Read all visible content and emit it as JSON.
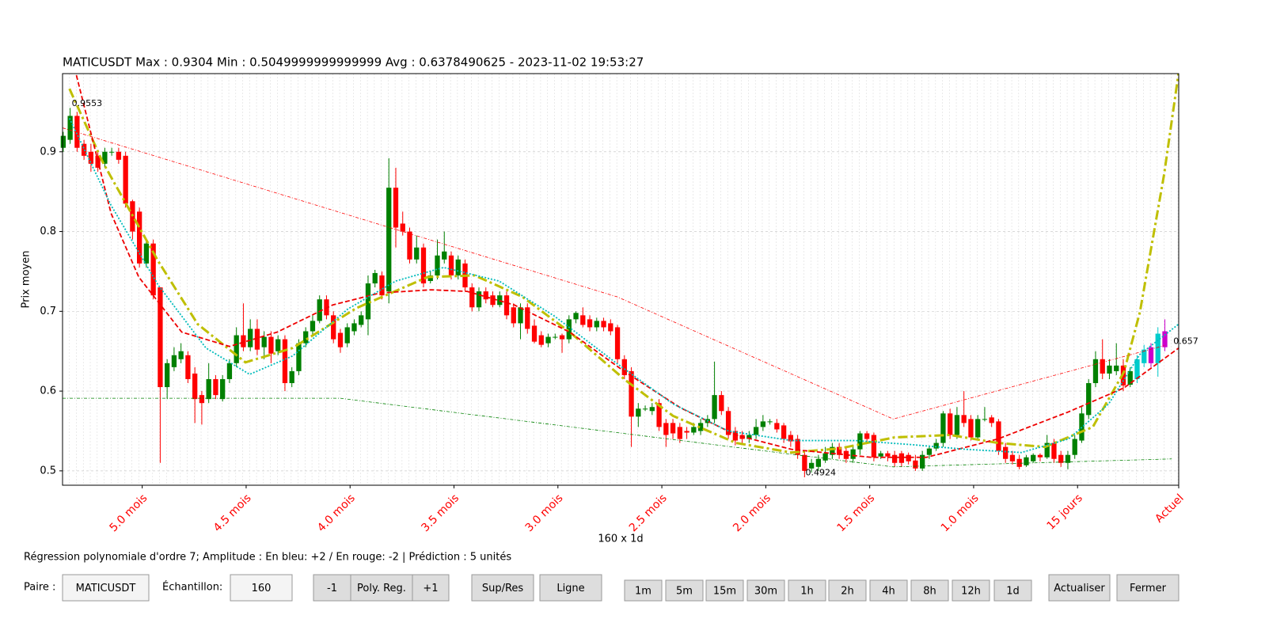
{
  "chart_data": {
    "type": "candlestick",
    "title": "MATICUSDT Max : 0.9304 Min : 0.5049999999999999 Avg : 0.6378490625 - 2023-11-02 19:53:27",
    "ylabel": "Prix moyen",
    "xlabel": "160 x 1d",
    "xlim": [
      -0.1,
      161
    ],
    "ylim": [
      0.482,
      0.998
    ],
    "yticks": [
      0.5,
      0.6,
      0.7,
      0.8,
      0.9
    ],
    "grid": true,
    "xticks": [
      {
        "value": 11.4,
        "label": "5.0 mois"
      },
      {
        "value": 26.4,
        "label": "4.5 mois"
      },
      {
        "value": 41.4,
        "label": "4.0 mois"
      },
      {
        "value": 56.4,
        "label": "3.5 mois"
      },
      {
        "value": 71.4,
        "label": "3.0 mois"
      },
      {
        "value": 86.4,
        "label": "2.5 mois"
      },
      {
        "value": 101.4,
        "label": "2.0 mois"
      },
      {
        "value": 116.4,
        "label": "1.5 mois"
      },
      {
        "value": 131.4,
        "label": "1.0 mois"
      },
      {
        "value": 146.4,
        "label": "15 jours"
      },
      {
        "value": 161,
        "label": "Actuel"
      }
    ],
    "up_color": "#008000",
    "down_color": "#ff0000",
    "pred_up_color": "#00cccc",
    "pred_down_color": "#cc00cc",
    "candles": [
      [
        0.905,
        0.925,
        0.9,
        0.92
      ],
      [
        0.915,
        0.955,
        0.91,
        0.945
      ],
      [
        0.945,
        0.95,
        0.9,
        0.905
      ],
      [
        0.91,
        0.915,
        0.89,
        0.895
      ],
      [
        0.9,
        0.91,
        0.875,
        0.885
      ],
      [
        0.895,
        0.9,
        0.875,
        0.88
      ],
      [
        0.885,
        0.905,
        0.88,
        0.9
      ],
      [
        0.9,
        0.905,
        0.895,
        0.9
      ],
      [
        0.9,
        0.905,
        0.885,
        0.89
      ],
      [
        0.895,
        0.9,
        0.83,
        0.835
      ],
      [
        0.838,
        0.84,
        0.79,
        0.8
      ],
      [
        0.825,
        0.83,
        0.755,
        0.76
      ],
      [
        0.76,
        0.79,
        0.755,
        0.785
      ],
      [
        0.785,
        0.79,
        0.715,
        0.72
      ],
      [
        0.73,
        0.73,
        0.51,
        0.605
      ],
      [
        0.605,
        0.64,
        0.59,
        0.635
      ],
      [
        0.63,
        0.655,
        0.625,
        0.645
      ],
      [
        0.64,
        0.66,
        0.635,
        0.65
      ],
      [
        0.645,
        0.65,
        0.61,
        0.615
      ],
      [
        0.622,
        0.63,
        0.56,
        0.59
      ],
      [
        0.595,
        0.6,
        0.558,
        0.585
      ],
      [
        0.59,
        0.635,
        0.585,
        0.615
      ],
      [
        0.615,
        0.62,
        0.59,
        0.595
      ],
      [
        0.59,
        0.62,
        0.587,
        0.615
      ],
      [
        0.615,
        0.64,
        0.61,
        0.635
      ],
      [
        0.635,
        0.68,
        0.63,
        0.67
      ],
      [
        0.67,
        0.71,
        0.65,
        0.655
      ],
      [
        0.655,
        0.69,
        0.65,
        0.678
      ],
      [
        0.678,
        0.69,
        0.645,
        0.652
      ],
      [
        0.655,
        0.675,
        0.64,
        0.668
      ],
      [
        0.668,
        0.675,
        0.635,
        0.647
      ],
      [
        0.65,
        0.67,
        0.645,
        0.665
      ],
      [
        0.665,
        0.67,
        0.6,
        0.61
      ],
      [
        0.61,
        0.63,
        0.605,
        0.625
      ],
      [
        0.625,
        0.665,
        0.62,
        0.66
      ],
      [
        0.66,
        0.68,
        0.655,
        0.675
      ],
      [
        0.675,
        0.695,
        0.67,
        0.688
      ],
      [
        0.688,
        0.72,
        0.685,
        0.715
      ],
      [
        0.715,
        0.72,
        0.69,
        0.695
      ],
      [
        0.695,
        0.7,
        0.66,
        0.665
      ],
      [
        0.673,
        0.678,
        0.648,
        0.655
      ],
      [
        0.66,
        0.685,
        0.655,
        0.68
      ],
      [
        0.675,
        0.69,
        0.67,
        0.685
      ],
      [
        0.683,
        0.7,
        0.68,
        0.695
      ],
      [
        0.69,
        0.745,
        0.67,
        0.735
      ],
      [
        0.735,
        0.752,
        0.73,
        0.748
      ],
      [
        0.745,
        0.75,
        0.715,
        0.72
      ],
      [
        0.725,
        0.892,
        0.71,
        0.855
      ],
      [
        0.855,
        0.88,
        0.78,
        0.805
      ],
      [
        0.81,
        0.825,
        0.795,
        0.8
      ],
      [
        0.8,
        0.805,
        0.76,
        0.765
      ],
      [
        0.765,
        0.795,
        0.76,
        0.78
      ],
      [
        0.78,
        0.785,
        0.73,
        0.735
      ],
      [
        0.738,
        0.75,
        0.735,
        0.745
      ],
      [
        0.745,
        0.79,
        0.74,
        0.77
      ],
      [
        0.765,
        0.8,
        0.76,
        0.775
      ],
      [
        0.77,
        0.775,
        0.74,
        0.745
      ],
      [
        0.745,
        0.77,
        0.74,
        0.765
      ],
      [
        0.76,
        0.765,
        0.725,
        0.73
      ],
      [
        0.73,
        0.735,
        0.7,
        0.705
      ],
      [
        0.705,
        0.73,
        0.7,
        0.725
      ],
      [
        0.725,
        0.73,
        0.71,
        0.715
      ],
      [
        0.72,
        0.725,
        0.705,
        0.708
      ],
      [
        0.708,
        0.725,
        0.705,
        0.72
      ],
      [
        0.72,
        0.725,
        0.69,
        0.695
      ],
      [
        0.705,
        0.71,
        0.68,
        0.685
      ],
      [
        0.685,
        0.71,
        0.665,
        0.705
      ],
      [
        0.705,
        0.71,
        0.672,
        0.678
      ],
      [
        0.682,
        0.69,
        0.66,
        0.662
      ],
      [
        0.67,
        0.675,
        0.655,
        0.658
      ],
      [
        0.66,
        0.672,
        0.655,
        0.668
      ],
      [
        0.668,
        0.672,
        0.665,
        0.668
      ],
      [
        0.67,
        0.672,
        0.648,
        0.665
      ],
      [
        0.665,
        0.695,
        0.66,
        0.69
      ],
      [
        0.69,
        0.7,
        0.685,
        0.698
      ],
      [
        0.695,
        0.705,
        0.68,
        0.683
      ],
      [
        0.69,
        0.695,
        0.675,
        0.68
      ],
      [
        0.68,
        0.692,
        0.675,
        0.688
      ],
      [
        0.688,
        0.692,
        0.675,
        0.68
      ],
      [
        0.685,
        0.69,
        0.67,
        0.675
      ],
      [
        0.68,
        0.683,
        0.635,
        0.64
      ],
      [
        0.64,
        0.645,
        0.615,
        0.62
      ],
      [
        0.625,
        0.63,
        0.53,
        0.568
      ],
      [
        0.568,
        0.585,
        0.555,
        0.578
      ],
      [
        0.578,
        0.582,
        0.575,
        0.578
      ],
      [
        0.575,
        0.585,
        0.57,
        0.58
      ],
      [
        0.585,
        0.59,
        0.55,
        0.555
      ],
      [
        0.56,
        0.565,
        0.53,
        0.545
      ],
      [
        0.56,
        0.565,
        0.54,
        0.547
      ],
      [
        0.555,
        0.56,
        0.535,
        0.54
      ],
      [
        0.55,
        0.555,
        0.54,
        0.548
      ],
      [
        0.548,
        0.56,
        0.545,
        0.555
      ],
      [
        0.55,
        0.565,
        0.545,
        0.56
      ],
      [
        0.56,
        0.57,
        0.555,
        0.565
      ],
      [
        0.565,
        0.637,
        0.56,
        0.595
      ],
      [
        0.595,
        0.6,
        0.57,
        0.575
      ],
      [
        0.575,
        0.58,
        0.54,
        0.545
      ],
      [
        0.55,
        0.555,
        0.532,
        0.538
      ],
      [
        0.545,
        0.55,
        0.535,
        0.54
      ],
      [
        0.54,
        0.55,
        0.535,
        0.545
      ],
      [
        0.545,
        0.565,
        0.54,
        0.555
      ],
      [
        0.555,
        0.57,
        0.55,
        0.562
      ],
      [
        0.562,
        0.565,
        0.558,
        0.562
      ],
      [
        0.56,
        0.565,
        0.548,
        0.552
      ],
      [
        0.557,
        0.56,
        0.535,
        0.54
      ],
      [
        0.545,
        0.55,
        0.53,
        0.537
      ],
      [
        0.54,
        0.545,
        0.515,
        0.52
      ],
      [
        0.52,
        0.525,
        0.492,
        0.5
      ],
      [
        0.503,
        0.515,
        0.498,
        0.51
      ],
      [
        0.505,
        0.52,
        0.5,
        0.515
      ],
      [
        0.513,
        0.53,
        0.51,
        0.522
      ],
      [
        0.52,
        0.535,
        0.515,
        0.53
      ],
      [
        0.53,
        0.535,
        0.515,
        0.52
      ],
      [
        0.525,
        0.53,
        0.51,
        0.515
      ],
      [
        0.515,
        0.53,
        0.51,
        0.527
      ],
      [
        0.527,
        0.55,
        0.52,
        0.547
      ],
      [
        0.547,
        0.55,
        0.535,
        0.54
      ],
      [
        0.545,
        0.548,
        0.512,
        0.517
      ],
      [
        0.518,
        0.525,
        0.515,
        0.522
      ],
      [
        0.522,
        0.525,
        0.512,
        0.518
      ],
      [
        0.52,
        0.525,
        0.505,
        0.51
      ],
      [
        0.522,
        0.525,
        0.505,
        0.51
      ],
      [
        0.52,
        0.523,
        0.508,
        0.512
      ],
      [
        0.513,
        0.52,
        0.5,
        0.503
      ],
      [
        0.503,
        0.525,
        0.5,
        0.52
      ],
      [
        0.52,
        0.53,
        0.515,
        0.528
      ],
      [
        0.528,
        0.54,
        0.525,
        0.535
      ],
      [
        0.535,
        0.575,
        0.53,
        0.572
      ],
      [
        0.572,
        0.578,
        0.54,
        0.545
      ],
      [
        0.545,
        0.58,
        0.54,
        0.57
      ],
      [
        0.57,
        0.6,
        0.555,
        0.56
      ],
      [
        0.565,
        0.57,
        0.538,
        0.542
      ],
      [
        0.542,
        0.57,
        0.54,
        0.565
      ],
      [
        0.565,
        0.58,
        0.562,
        0.565
      ],
      [
        0.567,
        0.57,
        0.555,
        0.56
      ],
      [
        0.562,
        0.565,
        0.52,
        0.525
      ],
      [
        0.53,
        0.535,
        0.51,
        0.515
      ],
      [
        0.52,
        0.525,
        0.508,
        0.512
      ],
      [
        0.515,
        0.52,
        0.502,
        0.505
      ],
      [
        0.507,
        0.52,
        0.505,
        0.517
      ],
      [
        0.512,
        0.522,
        0.51,
        0.52
      ],
      [
        0.52,
        0.522,
        0.512,
        0.517
      ],
      [
        0.517,
        0.545,
        0.515,
        0.535
      ],
      [
        0.535,
        0.54,
        0.51,
        0.515
      ],
      [
        0.52,
        0.525,
        0.505,
        0.51
      ],
      [
        0.51,
        0.525,
        0.502,
        0.52
      ],
      [
        0.52,
        0.545,
        0.515,
        0.54
      ],
      [
        0.538,
        0.58,
        0.535,
        0.572
      ],
      [
        0.57,
        0.615,
        0.565,
        0.61
      ],
      [
        0.61,
        0.65,
        0.605,
        0.64
      ],
      [
        0.64,
        0.665,
        0.615,
        0.622
      ],
      [
        0.622,
        0.64,
        0.615,
        0.632
      ],
      [
        0.625,
        0.66,
        0.62,
        0.632
      ],
      [
        0.632,
        0.64,
        0.6,
        0.607
      ],
      [
        0.608,
        0.63,
        0.605,
        0.625
      ]
    ],
    "prediction_candles": [
      [
        0.615,
        0.645,
        0.61,
        0.64
      ],
      [
        0.635,
        0.658,
        0.63,
        0.652
      ],
      [
        0.655,
        0.66,
        0.63,
        0.635
      ],
      [
        0.635,
        0.68,
        0.618,
        0.672
      ],
      [
        0.675,
        0.69,
        0.65,
        0.655
      ]
    ],
    "lines": [
      {
        "color": "#bfbf00",
        "dash": "12 4 3 4",
        "width": 3,
        "x": [
          0.9,
          5.7,
          13.7,
          19.4,
          26.3,
          33.1,
          42.3,
          52.6,
          59.4,
          66.3,
          73.1,
          81.1,
          88,
          97.1,
          105.1,
          112,
          120,
          128,
          134.9,
          141.7,
          148.6,
          153.1,
          155.4,
          158.9,
          161
        ],
        "values": [
          0.979,
          0.887,
          0.763,
          0.684,
          0.636,
          0.654,
          0.704,
          0.743,
          0.745,
          0.718,
          0.674,
          0.614,
          0.569,
          0.535,
          0.523,
          0.528,
          0.542,
          0.545,
          0.535,
          0.53,
          0.555,
          0.624,
          0.699,
          0.872,
          1.0
        ]
      },
      {
        "color": "#ee0000",
        "dash": "6 3",
        "width": 1.8,
        "x": [
          1.9,
          6.9,
          10.9,
          17.1,
          24,
          30.9,
          38.9,
          45.7,
          53.1,
          58.3,
          65.1,
          73.1,
          81.1,
          89.1,
          97.1,
          105.1,
          116.6,
          124.6,
          134.9,
          145.1,
          153.1,
          161
        ],
        "values": [
          0.996,
          0.823,
          0.743,
          0.674,
          0.656,
          0.674,
          0.708,
          0.723,
          0.727,
          0.725,
          0.708,
          0.674,
          0.624,
          0.579,
          0.545,
          0.527,
          0.517,
          0.517,
          0.54,
          0.574,
          0.604,
          0.654
        ]
      },
      {
        "color": "#00bbbb",
        "dash": "2 2",
        "width": 1.8,
        "x": [
          0.9,
          6.9,
          13.7,
          20.6,
          26.9,
          33.1,
          41.1,
          48,
          54.9,
          62.9,
          70.9,
          80,
          88,
          96,
          105.1,
          114.3,
          122.3,
          130.3,
          138.3,
          145.1,
          150.9,
          155.4,
          161
        ],
        "values": [
          0.942,
          0.833,
          0.733,
          0.654,
          0.621,
          0.644,
          0.703,
          0.738,
          0.755,
          0.738,
          0.694,
          0.634,
          0.584,
          0.55,
          0.538,
          0.538,
          0.533,
          0.527,
          0.523,
          0.54,
          0.584,
          0.646,
          0.684
        ]
      },
      {
        "color": "#ff0000",
        "dash": "4 2 1 2",
        "width": 0.8,
        "x": [
          -0.1,
          80,
          119.8,
          158.9
        ],
        "values": [
          0.93,
          0.718,
          0.565,
          0.657
        ]
      },
      {
        "color": "#008000",
        "dash": "4 2 1 2",
        "width": 0.8,
        "x": [
          -0.1,
          40,
          119.8,
          160
        ],
        "values": [
          0.591,
          0.591,
          0.505,
          0.515
        ]
      }
    ],
    "annotations": [
      {
        "label": "0.9553",
        "x": 1,
        "y": 0.9553
      },
      {
        "label": "0.4924",
        "x": 106.9,
        "y": 0.4924
      },
      {
        "label": "0.657",
        "x": 160,
        "y": 0.657
      }
    ]
  },
  "ui": {
    "info": "Régression polynomiale d'ordre 7; Amplitude : En bleu: +2 / En rouge: -2 | Prédiction : 5 unités",
    "pair_label": "Paire :",
    "pair_value": "MATICUSDT",
    "sample_label": "Échantillon:",
    "sample_value": "160",
    "buttons": [
      "-1",
      "Poly. Reg.",
      "+1",
      "Sup/Res",
      "Ligne"
    ],
    "timeframes": [
      "1m",
      "5m",
      "15m",
      "30m",
      "1h",
      "2h",
      "4h",
      "8h",
      "12h",
      "1d"
    ],
    "actions": [
      "Actualiser",
      "Fermer"
    ]
  }
}
